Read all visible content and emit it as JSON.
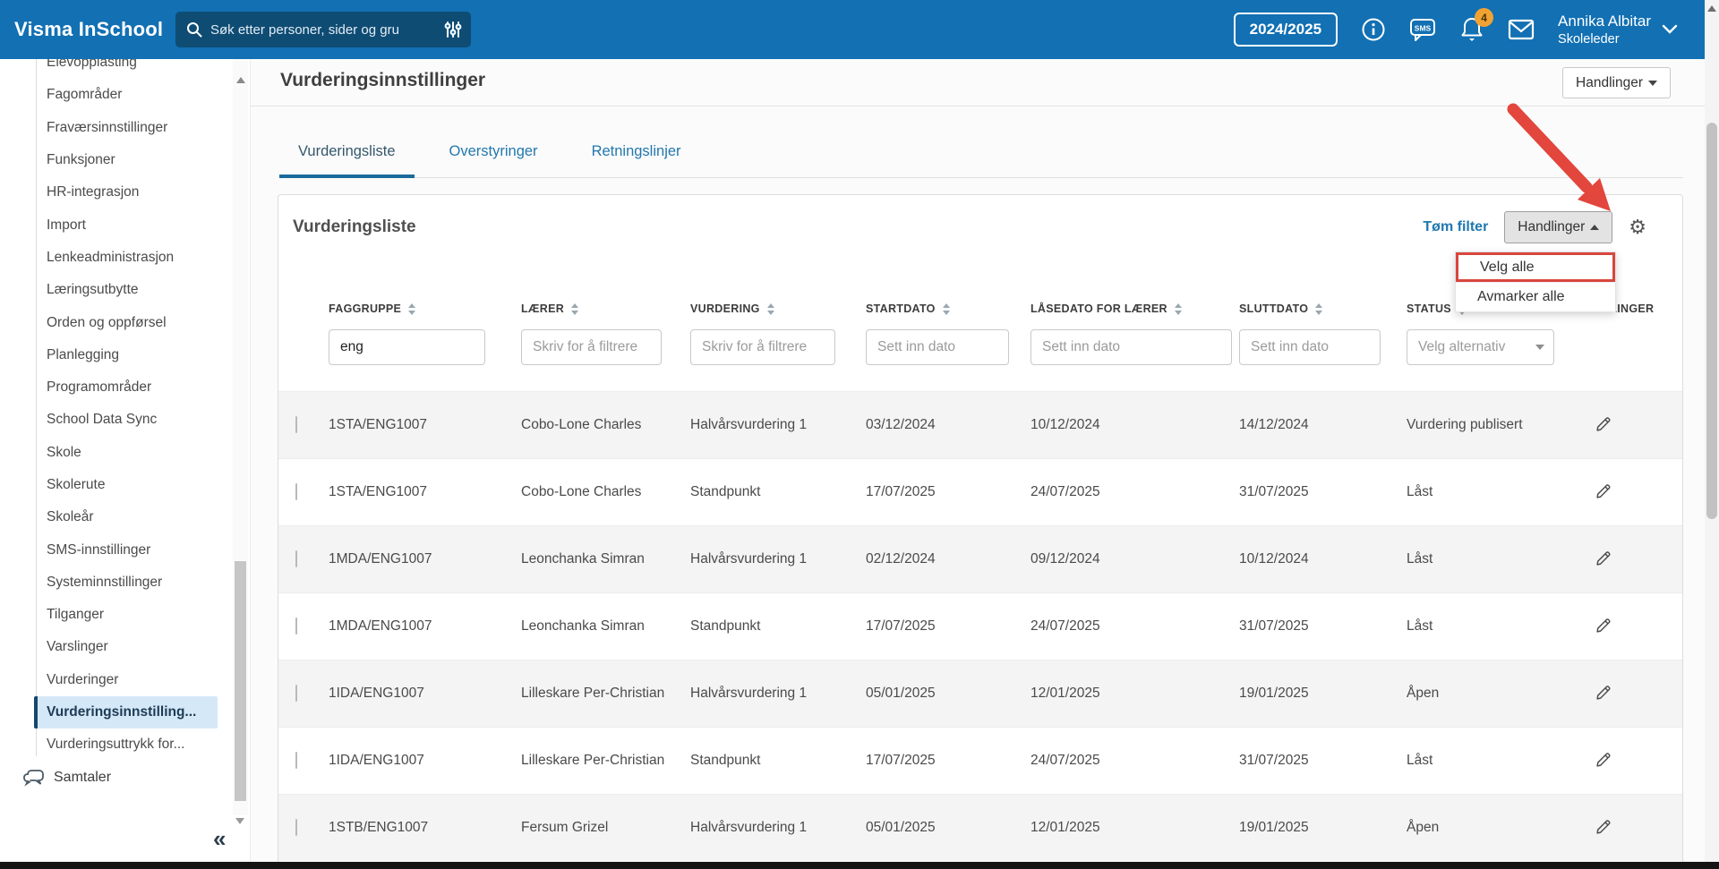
{
  "navbar": {
    "brand": "Visma InSchool",
    "search_placeholder": "Søk etter personer, sider og gru",
    "school_year": "2024/2025",
    "sms_label": "SMS",
    "notification_count": "4",
    "user_name": "Annika Albitar",
    "user_role": "Skoleleder"
  },
  "sidebar": {
    "items": [
      {
        "label": "Elevopplasting"
      },
      {
        "label": "Fagområder"
      },
      {
        "label": "Fraværsinnstillinger"
      },
      {
        "label": "Funksjoner"
      },
      {
        "label": "HR-integrasjon"
      },
      {
        "label": "Import"
      },
      {
        "label": "Lenkeadministrasjon"
      },
      {
        "label": "Læringsutbytte"
      },
      {
        "label": "Orden og oppførsel"
      },
      {
        "label": "Planlegging"
      },
      {
        "label": "Programområder"
      },
      {
        "label": "School Data Sync"
      },
      {
        "label": "Skole"
      },
      {
        "label": "Skolerute"
      },
      {
        "label": "Skoleår"
      },
      {
        "label": "SMS-innstillinger"
      },
      {
        "label": "Systeminnstillinger"
      },
      {
        "label": "Tilganger"
      },
      {
        "label": "Varslinger"
      },
      {
        "label": "Vurderinger"
      },
      {
        "label": "Vurderingsinnstilling...",
        "selected": true
      },
      {
        "label": "Vurderingsuttrykk for..."
      }
    ],
    "samtaler_label": "Samtaler",
    "collapse_glyph": "«"
  },
  "page": {
    "title": "Vurderingsinnstillinger",
    "actions_button": "Handlinger",
    "tabs": [
      {
        "label": "Vurderingsliste",
        "active": true
      },
      {
        "label": "Overstyringer"
      },
      {
        "label": "Retningslinjer"
      }
    ]
  },
  "card": {
    "title": "Vurderingsliste",
    "clear_filter_label": "Tøm filter",
    "actions_button": "Handlinger",
    "menu_items": [
      {
        "label": "Velg alle",
        "highlighted": true
      },
      {
        "label": "Avmarker alle"
      }
    ]
  },
  "table": {
    "columns": [
      {
        "label": "FAGGRUPPE",
        "sortable": true
      },
      {
        "label": "LÆRER",
        "sortable": true
      },
      {
        "label": "VURDERING",
        "sortable": true
      },
      {
        "label": "STARTDATO",
        "sortable": true
      },
      {
        "label": "LÅSEDATO FOR LÆRER",
        "sortable": true
      },
      {
        "label": "SLUTTDATO",
        "sortable": true
      },
      {
        "label": "STATUS",
        "sortable": true
      },
      {
        "label": "HANDLINGER",
        "sortable": false
      }
    ],
    "filters": {
      "faggruppe_value": "eng",
      "text_placeholder": "Skriv for å filtrere",
      "date_placeholder": "Sett inn dato",
      "status_placeholder": "Velg alternativ"
    },
    "rows": [
      {
        "faggruppe": "1STA/ENG1007",
        "laerer": "Cobo-Lone Charles",
        "vurdering": "Halvårsvurdering 1",
        "startdato": "03/12/2024",
        "laasedato": "10/12/2024",
        "sluttdato": "14/12/2024",
        "status": "Vurdering publisert"
      },
      {
        "faggruppe": "1STA/ENG1007",
        "laerer": "Cobo-Lone Charles",
        "vurdering": "Standpunkt",
        "startdato": "17/07/2025",
        "laasedato": "24/07/2025",
        "sluttdato": "31/07/2025",
        "status": "Låst"
      },
      {
        "faggruppe": "1MDA/ENG1007",
        "laerer": "Leonchanka Simran",
        "vurdering": "Halvårsvurdering 1",
        "startdato": "02/12/2024",
        "laasedato": "09/12/2024",
        "sluttdato": "10/12/2024",
        "status": "Låst"
      },
      {
        "faggruppe": "1MDA/ENG1007",
        "laerer": "Leonchanka Simran",
        "vurdering": "Standpunkt",
        "startdato": "17/07/2025",
        "laasedato": "24/07/2025",
        "sluttdato": "31/07/2025",
        "status": "Låst"
      },
      {
        "faggruppe": "1IDA/ENG1007",
        "laerer": "Lilleskare Per-Christian",
        "vurdering": "Halvårsvurdering 1",
        "startdato": "05/01/2025",
        "laasedato": "12/01/2025",
        "sluttdato": "19/01/2025",
        "status": "Åpen"
      },
      {
        "faggruppe": "1IDA/ENG1007",
        "laerer": "Lilleskare Per-Christian",
        "vurdering": "Standpunkt",
        "startdato": "17/07/2025",
        "laasedato": "24/07/2025",
        "sluttdato": "31/07/2025",
        "status": "Låst"
      },
      {
        "faggruppe": "1STB/ENG1007",
        "laerer": "Fersum Grizel",
        "vurdering": "Halvårsvurdering 1",
        "startdato": "05/01/2025",
        "laasedato": "12/01/2025",
        "sluttdato": "19/01/2025",
        "status": "Åpen"
      }
    ]
  },
  "colors": {
    "navbar_blue": "#1270b3",
    "search_navy": "#0f4c74",
    "badge_orange": "#f0a233",
    "link_blue": "#2278ae",
    "tab_underline": "#1b6a9c",
    "selected_item_bg": "#d5e8f8",
    "annotation_red": "#e2463c"
  }
}
